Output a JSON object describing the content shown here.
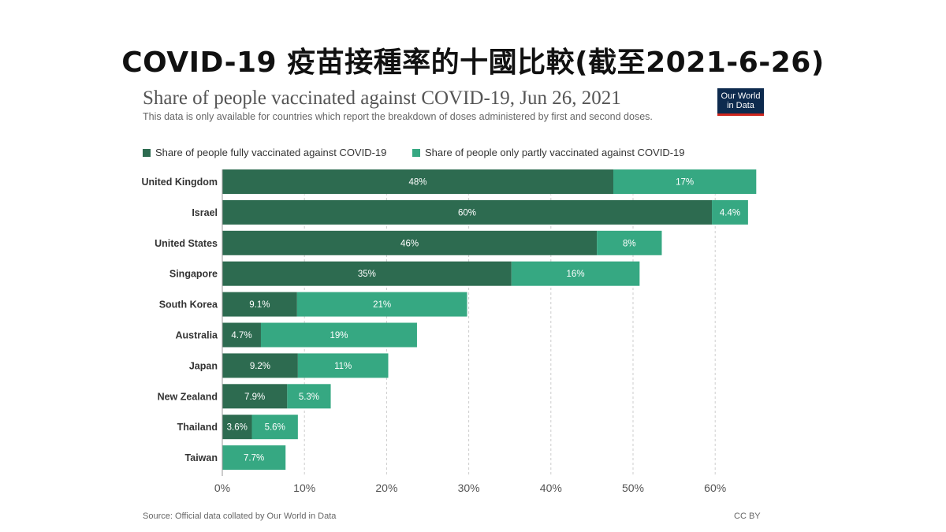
{
  "page": {
    "banner_title": "COVID-19 疫苗接種率的十國比較(截至2021-6-26)",
    "logo_line1": "Our World",
    "logo_line2": "in Data",
    "source": "Source: Official data collated by Our World in Data",
    "license": "CC BY"
  },
  "colors": {
    "fully": "#2d6b50",
    "partly": "#36a882",
    "grid": "#cccccc",
    "axis_text": "#555555",
    "label_text": "#333333"
  },
  "chart_data": {
    "type": "bar",
    "orientation": "horizontal",
    "stacked": true,
    "title": "Share of people vaccinated against COVID-19, Jun 26, 2021",
    "subtitle": "This data is only available for countries which report the breakdown of doses administered by first and second doses.",
    "categories": [
      "United Kingdom",
      "Israel",
      "United States",
      "Singapore",
      "South Korea",
      "Australia",
      "Japan",
      "New Zealand",
      "Thailand",
      "Taiwan"
    ],
    "series": [
      {
        "name": "Share of people fully vaccinated against COVID-19",
        "values": [
          47.6,
          59.6,
          45.6,
          35.2,
          9.1,
          4.7,
          9.2,
          7.9,
          3.6,
          0
        ],
        "labels": [
          "48%",
          "60%",
          "46%",
          "35%",
          "9.1%",
          "4.7%",
          "9.2%",
          "7.9%",
          "3.6%",
          ""
        ]
      },
      {
        "name": "Share of people only partly vaccinated against COVID-19",
        "values": [
          17.4,
          4.4,
          7.9,
          15.6,
          20.7,
          19.0,
          11.0,
          5.3,
          5.6,
          7.7
        ],
        "labels": [
          "17%",
          "4.4%",
          "8%",
          "16%",
          "21%",
          "19%",
          "11%",
          "5.3%",
          "5.6%",
          "7.7%"
        ]
      }
    ],
    "x_ticks": [
      "0%",
      "10%",
      "20%",
      "30%",
      "40%",
      "50%",
      "60%"
    ],
    "xlim": [
      0,
      65
    ],
    "grid": true,
    "legend_position": "top"
  }
}
